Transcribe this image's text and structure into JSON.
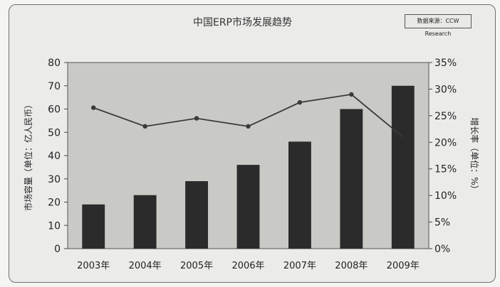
{
  "colors": {
    "plot_bg": "#c9c9c6",
    "bar": "#2b2b2b",
    "line": "#3a3a3a",
    "frame": "#6f6f6f"
  },
  "source_box": {
    "text": "数据来源：CCW Research"
  },
  "chart_data": {
    "type": "bar",
    "title": "中国ERP市场发展趋势",
    "categories": [
      "2003年",
      "2004年",
      "2005年",
      "2006年",
      "2007年",
      "2008年",
      "2009年"
    ],
    "series": [
      {
        "type": "bar",
        "axis": "left",
        "values": [
          19,
          23,
          29,
          36,
          46,
          60,
          70
        ]
      },
      {
        "type": "line",
        "axis": "right",
        "values": [
          26.5,
          23,
          24.5,
          23,
          27.5,
          29,
          21
        ]
      }
    ],
    "y_left": {
      "label": "市场容量（单位：亿人民币）",
      "min": 0,
      "max": 80,
      "ticks": [
        0,
        10,
        20,
        30,
        40,
        50,
        60,
        70,
        80
      ]
    },
    "y_right": {
      "label": "增长率（单位：%）",
      "min": 0,
      "max": 35,
      "ticks": [
        "0%",
        "5%",
        "10%",
        "15%",
        "20%",
        "25%",
        "30%",
        "35%"
      ]
    },
    "grid": false,
    "legend": "none"
  }
}
